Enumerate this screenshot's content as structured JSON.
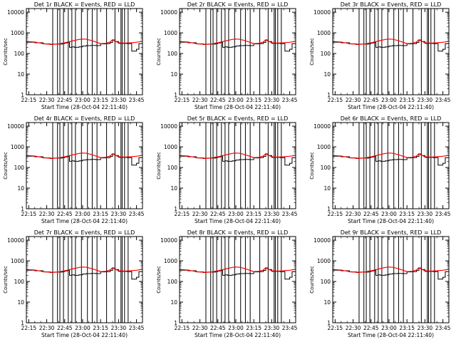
{
  "figure": {
    "background": "#ffffff",
    "events_color": "#000000",
    "lld_color": "#ff0000"
  },
  "chart_data": [
    {
      "type": "line",
      "title": "Det  1r  BLACK = Events, RED = LLD",
      "ylabel": "Counts/sec",
      "xlabel": "Start Time (28-Oct-04 22:11:40)"
    },
    {
      "type": "line",
      "title": "Det  2r  BLACK = Events, RED = LLD",
      "ylabel": "Counts/sec",
      "xlabel": "Start Time (28-Oct-04 22:11:40)"
    },
    {
      "type": "line",
      "title": "Det  3r  BLACK = Events, RED = LLD",
      "ylabel": "Counts/sec",
      "xlabel": "Start Time (28-Oct-04 22:11:40)"
    },
    {
      "type": "line",
      "title": "Det  4r  BLACK = Events, RED = LLD",
      "ylabel": "Counts/sec",
      "xlabel": "Start Time (28-Oct-04 22:11:40)"
    },
    {
      "type": "line",
      "title": "Det  5r  BLACK = Events, RED = LLD",
      "ylabel": "Counts/sec",
      "xlabel": "Start Time (28-Oct-04 22:11:40)"
    },
    {
      "type": "line",
      "title": "Det  6r  BLACK = Events, RED = LLD",
      "ylabel": "Counts/sec",
      "xlabel": "Start Time (28-Oct-04 22:11:40)"
    },
    {
      "type": "line",
      "title": "Det  7r  BLACK = Events, RED = LLD",
      "ylabel": "Counts/sec",
      "xlabel": "Start Time (28-Oct-04 22:11:40)"
    },
    {
      "type": "line",
      "title": "Det  8r  BLACK = Events, RED = LLD",
      "ylabel": "Counts/sec",
      "xlabel": "Start Time (28-Oct-04 22:11:40)"
    },
    {
      "type": "line",
      "title": "Det  9r  BLACK = Events, RED = LLD",
      "ylabel": "Counts/sec",
      "xlabel": "Start Time (28-Oct-04 22:11:40)"
    }
  ],
  "shared_axes": {
    "xlim_minutes": [
      -2,
      95
    ],
    "ylim": [
      1,
      15000
    ],
    "yscale": "log",
    "x_ticks": [
      {
        "label": "22:15",
        "minutes": 0
      },
      {
        "label": "22:30",
        "minutes": 15
      },
      {
        "label": "22:45",
        "minutes": 30
      },
      {
        "label": "23:00",
        "minutes": 45
      },
      {
        "label": "23:15",
        "minutes": 60
      },
      {
        "label": "23:30",
        "minutes": 75
      },
      {
        "label": "23:45",
        "minutes": 90
      }
    ],
    "y_ticks": [
      {
        "label": "1",
        "value": 1
      },
      {
        "label": "10",
        "value": 10
      },
      {
        "label": "100",
        "value": 100
      },
      {
        "label": "1000",
        "value": 1000
      },
      {
        "label": "10000",
        "value": 10000
      }
    ]
  },
  "series": {
    "lld": {
      "name": "LLD",
      "x": [
        -2,
        5,
        12,
        18,
        24,
        30,
        36,
        42,
        45,
        48,
        52,
        56,
        60,
        64,
        68,
        70,
        72,
        75,
        80,
        85,
        90,
        95
      ],
      "y": [
        380,
        360,
        300,
        280,
        285,
        330,
        400,
        480,
        500,
        490,
        430,
        360,
        300,
        310,
        360,
        470,
        400,
        330,
        320,
        330,
        350,
        390
      ]
    },
    "events": {
      "name": "Events",
      "x": [
        -2,
        5,
        12,
        18,
        20,
        22,
        24,
        26,
        28,
        30,
        32,
        34,
        36,
        38,
        42,
        45,
        48,
        52,
        56,
        60,
        64,
        68,
        70,
        72,
        75,
        80,
        82,
        84,
        86,
        88,
        90,
        92,
        95
      ],
      "y": [
        350,
        330,
        290,
        270,
        280,
        285,
        285,
        285,
        300,
        320,
        340,
        200,
        210,
        200,
        210,
        230,
        240,
        245,
        240,
        290,
        300,
        340,
        450,
        380,
        310,
        310,
        300,
        300,
        130,
        130,
        160,
        300,
        340
      ]
    },
    "event_spikes_minutes": [
      20,
      24,
      26,
      29,
      33,
      36,
      39,
      44,
      49,
      53,
      57,
      65,
      72,
      77,
      78,
      80,
      83
    ]
  }
}
